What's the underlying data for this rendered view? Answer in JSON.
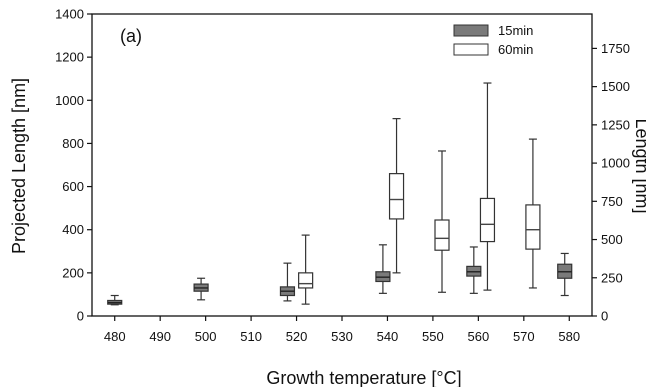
{
  "chart_data": {
    "type": "box",
    "panel_label": "(a)",
    "xlabel": "Growth temperature [°C]",
    "ylabel_left": "Projected Length [nm]",
    "ylabel_right": "Length [nm]",
    "xlim": [
      475,
      585
    ],
    "xticks": [
      "480",
      "490",
      "500",
      "510",
      "520",
      "530",
      "540",
      "550",
      "560",
      "570",
      "580"
    ],
    "ylim_left": [
      0,
      1400
    ],
    "yticks_left": [
      "0",
      "200",
      "400",
      "600",
      "800",
      "1000",
      "1200",
      "1400"
    ],
    "ylim_right": [
      0,
      1975
    ],
    "yticks_right": [
      "0",
      "250",
      "500",
      "750",
      "1000",
      "1250",
      "1500",
      "1750"
    ],
    "legend_position": "top-right",
    "series": [
      {
        "name": "15min",
        "fill": "#7a7a7a",
        "boxes": [
          {
            "x": 480,
            "whisker_low": 52,
            "q1": 55,
            "median": 62,
            "q3": 72,
            "whisker_high": 95
          },
          {
            "x": 499,
            "whisker_low": 75,
            "q1": 115,
            "median": 130,
            "q3": 148,
            "whisker_high": 175
          },
          {
            "x": 518,
            "whisker_low": 70,
            "q1": 95,
            "median": 115,
            "q3": 135,
            "whisker_high": 245
          },
          {
            "x": 539,
            "whisker_low": 105,
            "q1": 160,
            "median": 180,
            "q3": 205,
            "whisker_high": 330
          },
          {
            "x": 559,
            "whisker_low": 105,
            "q1": 185,
            "median": 205,
            "q3": 230,
            "whisker_high": 320
          },
          {
            "x": 579,
            "whisker_low": 95,
            "q1": 175,
            "median": 205,
            "q3": 240,
            "whisker_high": 290
          }
        ]
      },
      {
        "name": "60min",
        "fill": "#ffffff",
        "boxes": [
          {
            "x": 522,
            "whisker_low": 55,
            "q1": 130,
            "median": 150,
            "q3": 200,
            "whisker_high": 375
          },
          {
            "x": 542,
            "whisker_low": 200,
            "q1": 450,
            "median": 540,
            "q3": 660,
            "whisker_high": 915
          },
          {
            "x": 552,
            "whisker_low": 110,
            "q1": 305,
            "median": 360,
            "q3": 445,
            "whisker_high": 765
          },
          {
            "x": 562,
            "whisker_low": 120,
            "q1": 345,
            "median": 425,
            "q3": 545,
            "whisker_high": 1080
          },
          {
            "x": 572,
            "whisker_low": 130,
            "q1": 310,
            "median": 400,
            "q3": 515,
            "whisker_high": 820
          }
        ]
      }
    ]
  }
}
